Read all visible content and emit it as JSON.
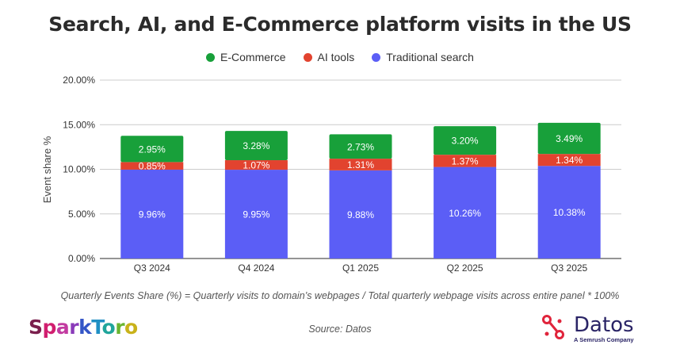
{
  "chart_data": {
    "type": "bar",
    "stacked": true,
    "title": "Search, AI, and E-Commerce platform visits in the US",
    "ylabel": "Event share %",
    "xlabel": "",
    "ylim": [
      0,
      20
    ],
    "yticks": [
      "0.00%",
      "5.00%",
      "10.00%",
      "15.00%",
      "20.00%"
    ],
    "ytick_values": [
      0,
      5,
      10,
      15,
      20
    ],
    "grid": true,
    "legend_position": "top",
    "categories": [
      "Q3 2024",
      "Q4 2024",
      "Q1 2025",
      "Q2 2025",
      "Q3 2025"
    ],
    "series": [
      {
        "name": "Traditional search",
        "color": "#5b5ef6",
        "values": [
          9.96,
          9.95,
          9.88,
          10.26,
          10.38
        ],
        "labels": [
          "9.96%",
          "9.95%",
          "9.88%",
          "10.26%",
          "10.38%"
        ]
      },
      {
        "name": "AI tools",
        "color": "#e2432f",
        "values": [
          0.85,
          1.07,
          1.31,
          1.37,
          1.34
        ],
        "labels": [
          "0.85%",
          "1.07%",
          "1.31%",
          "1.37%",
          "1.34%"
        ]
      },
      {
        "name": "E-Commerce",
        "color": "#18a03a",
        "values": [
          2.95,
          3.28,
          2.73,
          3.2,
          3.49
        ],
        "labels": [
          "2.95%",
          "3.28%",
          "2.73%",
          "3.20%",
          "3.49%"
        ]
      }
    ],
    "legend_order": [
      2,
      1,
      0
    ]
  },
  "footer": {
    "formula": "Quarterly Events Share (%) = Quarterly visits to domain’s webpages / Total quarterly webpage visits across entire panel * 100%",
    "source": "Source: Datos",
    "left_logo": "SparkToro",
    "right_logo": "Datos",
    "right_logo_tagline": "A Semrush Company"
  }
}
